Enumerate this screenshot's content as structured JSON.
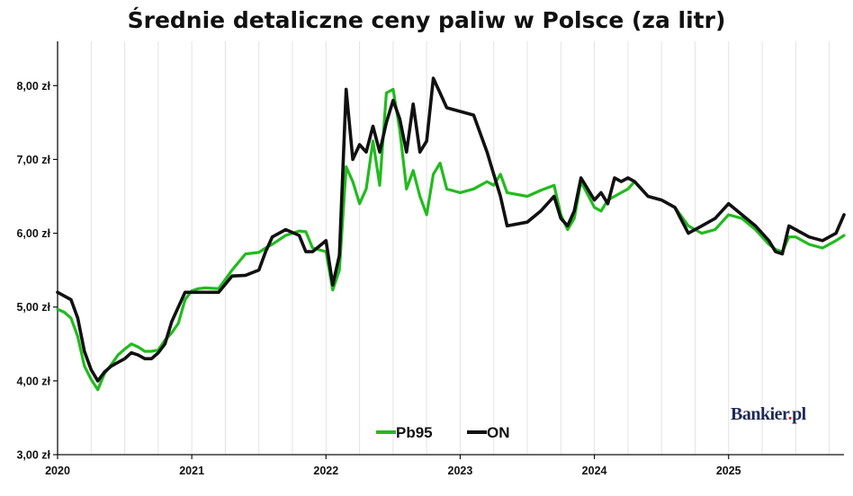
{
  "chart_data": {
    "type": "line",
    "title": "Średnie detaliczne ceny paliw w Polsce (za litr)",
    "xlabel": "",
    "ylabel": "",
    "xlim": [
      2020.0,
      2025.86
    ],
    "ylim": [
      3.0,
      8.6
    ],
    "y_ticks": [
      3.0,
      4.0,
      5.0,
      6.0,
      7.0,
      8.0
    ],
    "y_tick_labels": [
      "3,00 zł",
      "4,00 zł",
      "5,00 zł",
      "6,00 zł",
      "7,00 zł",
      "8,00 zł"
    ],
    "x_ticks": [
      2020,
      2021,
      2022,
      2023,
      2024,
      2025
    ],
    "x_tick_labels": [
      "2020",
      "2021",
      "2022",
      "2023",
      "2024",
      "2025"
    ],
    "grid": {
      "x": true,
      "y": false
    },
    "legend": {
      "position": "bottom-center"
    },
    "series": [
      {
        "name": "Pb95",
        "color": "#22bb1e",
        "x": [
          2020.0,
          2020.05,
          2020.1,
          2020.15,
          2020.2,
          2020.25,
          2020.3,
          2020.35,
          2020.4,
          2020.45,
          2020.5,
          2020.55,
          2020.6,
          2020.65,
          2020.7,
          2020.75,
          2020.8,
          2020.85,
          2020.9,
          2020.95,
          2021.0,
          2021.05,
          2021.1,
          2021.2,
          2021.3,
          2021.4,
          2021.5,
          2021.55,
          2021.6,
          2021.7,
          2021.8,
          2021.85,
          2021.9,
          2022.0,
          2022.05,
          2022.1,
          2022.15,
          2022.2,
          2022.25,
          2022.3,
          2022.35,
          2022.4,
          2022.45,
          2022.5,
          2022.55,
          2022.6,
          2022.65,
          2022.7,
          2022.75,
          2022.8,
          2022.85,
          2022.9,
          2023.0,
          2023.1,
          2023.2,
          2023.25,
          2023.3,
          2023.35,
          2023.5,
          2023.6,
          2023.7,
          2023.75,
          2023.8,
          2023.85,
          2023.9,
          2024.0,
          2024.05,
          2024.1,
          2024.15,
          2024.2,
          2024.25,
          2024.3,
          2024.4,
          2024.5,
          2024.6,
          2024.7,
          2024.8,
          2024.9,
          2025.0,
          2025.1,
          2025.2,
          2025.3,
          2025.35,
          2025.4,
          2025.45,
          2025.5,
          2025.6,
          2025.7,
          2025.8,
          2025.86
        ],
        "values": [
          4.97,
          4.93,
          4.85,
          4.6,
          4.2,
          4.02,
          3.88,
          4.1,
          4.22,
          4.35,
          4.43,
          4.5,
          4.46,
          4.4,
          4.4,
          4.42,
          4.55,
          4.65,
          4.78,
          5.1,
          5.22,
          5.25,
          5.26,
          5.25,
          5.5,
          5.72,
          5.74,
          5.8,
          5.85,
          5.97,
          6.03,
          6.02,
          5.8,
          5.75,
          5.23,
          5.5,
          6.9,
          6.7,
          6.4,
          6.6,
          7.25,
          6.65,
          7.9,
          7.95,
          7.4,
          6.6,
          6.85,
          6.5,
          6.25,
          6.8,
          6.95,
          6.6,
          6.55,
          6.6,
          6.7,
          6.65,
          6.8,
          6.55,
          6.5,
          6.58,
          6.65,
          6.25,
          6.05,
          6.2,
          6.7,
          6.35,
          6.3,
          6.45,
          6.5,
          6.55,
          6.6,
          6.7,
          6.5,
          6.45,
          6.35,
          6.1,
          6.0,
          6.05,
          6.25,
          6.2,
          6.05,
          5.85,
          5.78,
          5.75,
          5.95,
          5.95,
          5.85,
          5.8,
          5.9,
          5.97
        ]
      },
      {
        "name": "ON",
        "color": "#111111",
        "x": [
          2020.0,
          2020.05,
          2020.1,
          2020.15,
          2020.2,
          2020.25,
          2020.3,
          2020.35,
          2020.4,
          2020.45,
          2020.5,
          2020.55,
          2020.6,
          2020.65,
          2020.7,
          2020.75,
          2020.8,
          2020.85,
          2020.9,
          2020.95,
          2021.0,
          2021.05,
          2021.1,
          2021.2,
          2021.3,
          2021.4,
          2021.5,
          2021.55,
          2021.6,
          2021.7,
          2021.8,
          2021.85,
          2021.9,
          2022.0,
          2022.05,
          2022.1,
          2022.15,
          2022.2,
          2022.25,
          2022.3,
          2022.35,
          2022.4,
          2022.45,
          2022.5,
          2022.55,
          2022.6,
          2022.65,
          2022.7,
          2022.75,
          2022.8,
          2022.85,
          2022.9,
          2023.0,
          2023.1,
          2023.2,
          2023.25,
          2023.3,
          2023.35,
          2023.5,
          2023.6,
          2023.7,
          2023.75,
          2023.8,
          2023.85,
          2023.9,
          2024.0,
          2024.05,
          2024.1,
          2024.15,
          2024.2,
          2024.25,
          2024.3,
          2024.4,
          2024.5,
          2024.6,
          2024.7,
          2024.8,
          2024.9,
          2025.0,
          2025.1,
          2025.2,
          2025.3,
          2025.35,
          2025.4,
          2025.45,
          2025.5,
          2025.6,
          2025.7,
          2025.8,
          2025.86
        ],
        "values": [
          5.2,
          5.15,
          5.1,
          4.85,
          4.4,
          4.15,
          4.0,
          4.12,
          4.2,
          4.25,
          4.3,
          4.38,
          4.35,
          4.3,
          4.3,
          4.38,
          4.5,
          4.8,
          5.0,
          5.2,
          5.2,
          5.2,
          5.2,
          5.2,
          5.42,
          5.43,
          5.5,
          5.75,
          5.95,
          6.05,
          5.97,
          5.75,
          5.75,
          5.9,
          5.3,
          5.7,
          7.95,
          7.0,
          7.2,
          7.1,
          7.45,
          7.1,
          7.5,
          7.8,
          7.55,
          7.1,
          7.75,
          7.1,
          7.25,
          8.1,
          7.9,
          7.7,
          7.65,
          7.6,
          7.1,
          6.8,
          6.5,
          6.1,
          6.15,
          6.3,
          6.5,
          6.2,
          6.1,
          6.3,
          6.75,
          6.45,
          6.55,
          6.4,
          6.75,
          6.7,
          6.75,
          6.7,
          6.5,
          6.45,
          6.35,
          6.0,
          6.1,
          6.2,
          6.4,
          6.25,
          6.1,
          5.9,
          5.75,
          5.72,
          6.1,
          6.05,
          5.95,
          5.9,
          6.0,
          6.25
        ]
      }
    ]
  },
  "brand": {
    "name": "Bankier",
    "dot": ".",
    "suffix": "pl"
  }
}
